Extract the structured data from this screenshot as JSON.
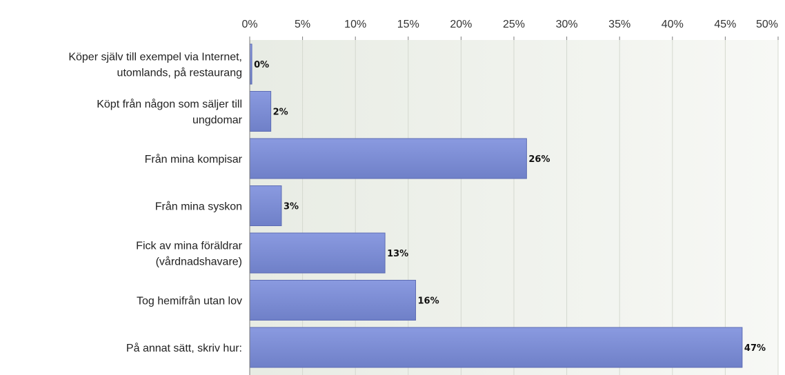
{
  "chart_data": {
    "type": "bar",
    "orientation": "horizontal",
    "categories": [
      [
        "Köper själv till exempel via Internet,",
        "utomlands, på restaurang"
      ],
      [
        "Köpt från någon som säljer till",
        "ungdomar"
      ],
      [
        "Från mina kompisar"
      ],
      [
        "Från mina syskon"
      ],
      [
        "Fick av mina föräldrar",
        "(vårdnadshavare)"
      ],
      [
        "Tog hemifrån utan lov"
      ],
      [
        "På annat sätt, skriv hur:"
      ]
    ],
    "values": [
      0.2,
      2,
      26.2,
      3,
      12.8,
      15.7,
      46.6
    ],
    "value_labels": [
      "0%",
      "2%",
      "26%",
      "3%",
      "13%",
      "16%",
      "47%"
    ],
    "xlim": [
      0,
      50
    ],
    "xticks": [
      "0%",
      "5%",
      "10%",
      "15%",
      "20%",
      "25%",
      "30%",
      "35%",
      "40%",
      "45%",
      "50%"
    ],
    "axis_position": "top",
    "grid": true,
    "colors": {
      "bar": "#7b8cd3",
      "bar_edge": "#5d6cb4",
      "plot_bg": "#eef1ea",
      "grid": "#d4d8cf",
      "axis": "#7a7a7a"
    }
  }
}
